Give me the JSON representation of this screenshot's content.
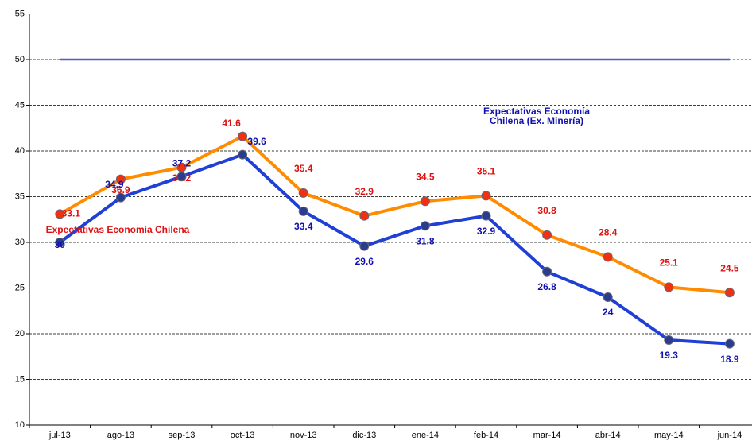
{
  "chart_data": {
    "type": "line",
    "categories": [
      "jul-13",
      "ago-13",
      "sep-13",
      "oct-13",
      "nov-13",
      "dic-13",
      "ene-14",
      "feb-14",
      "mar-14",
      "abr-14",
      "may-14",
      "jun-14"
    ],
    "series": [
      {
        "name": "Expectativas Economía Chilena",
        "color": "#ff8c00",
        "marker_color": "#f03010",
        "label_color": "#e01010",
        "values": [
          33.1,
          36.9,
          38.2,
          41.6,
          35.4,
          32.9,
          34.5,
          35.1,
          30.8,
          28.4,
          25.1,
          24.5
        ]
      },
      {
        "name": "Expectativas Economía Chilena (Ex. Minería)",
        "color": "#1f3fd6",
        "marker_color": "#2a3d8c",
        "label_color": "#1010b0",
        "values": [
          30.0,
          34.9,
          37.2,
          39.6,
          33.4,
          29.6,
          31.8,
          32.9,
          26.8,
          24.0,
          19.3,
          18.9
        ]
      }
    ],
    "reference_line": {
      "value": 50,
      "color": "#4a5fc8"
    },
    "ylim": [
      10,
      55
    ],
    "yticks": [
      10,
      15,
      20,
      25,
      30,
      35,
      40,
      45,
      50,
      55
    ],
    "grid": true
  }
}
